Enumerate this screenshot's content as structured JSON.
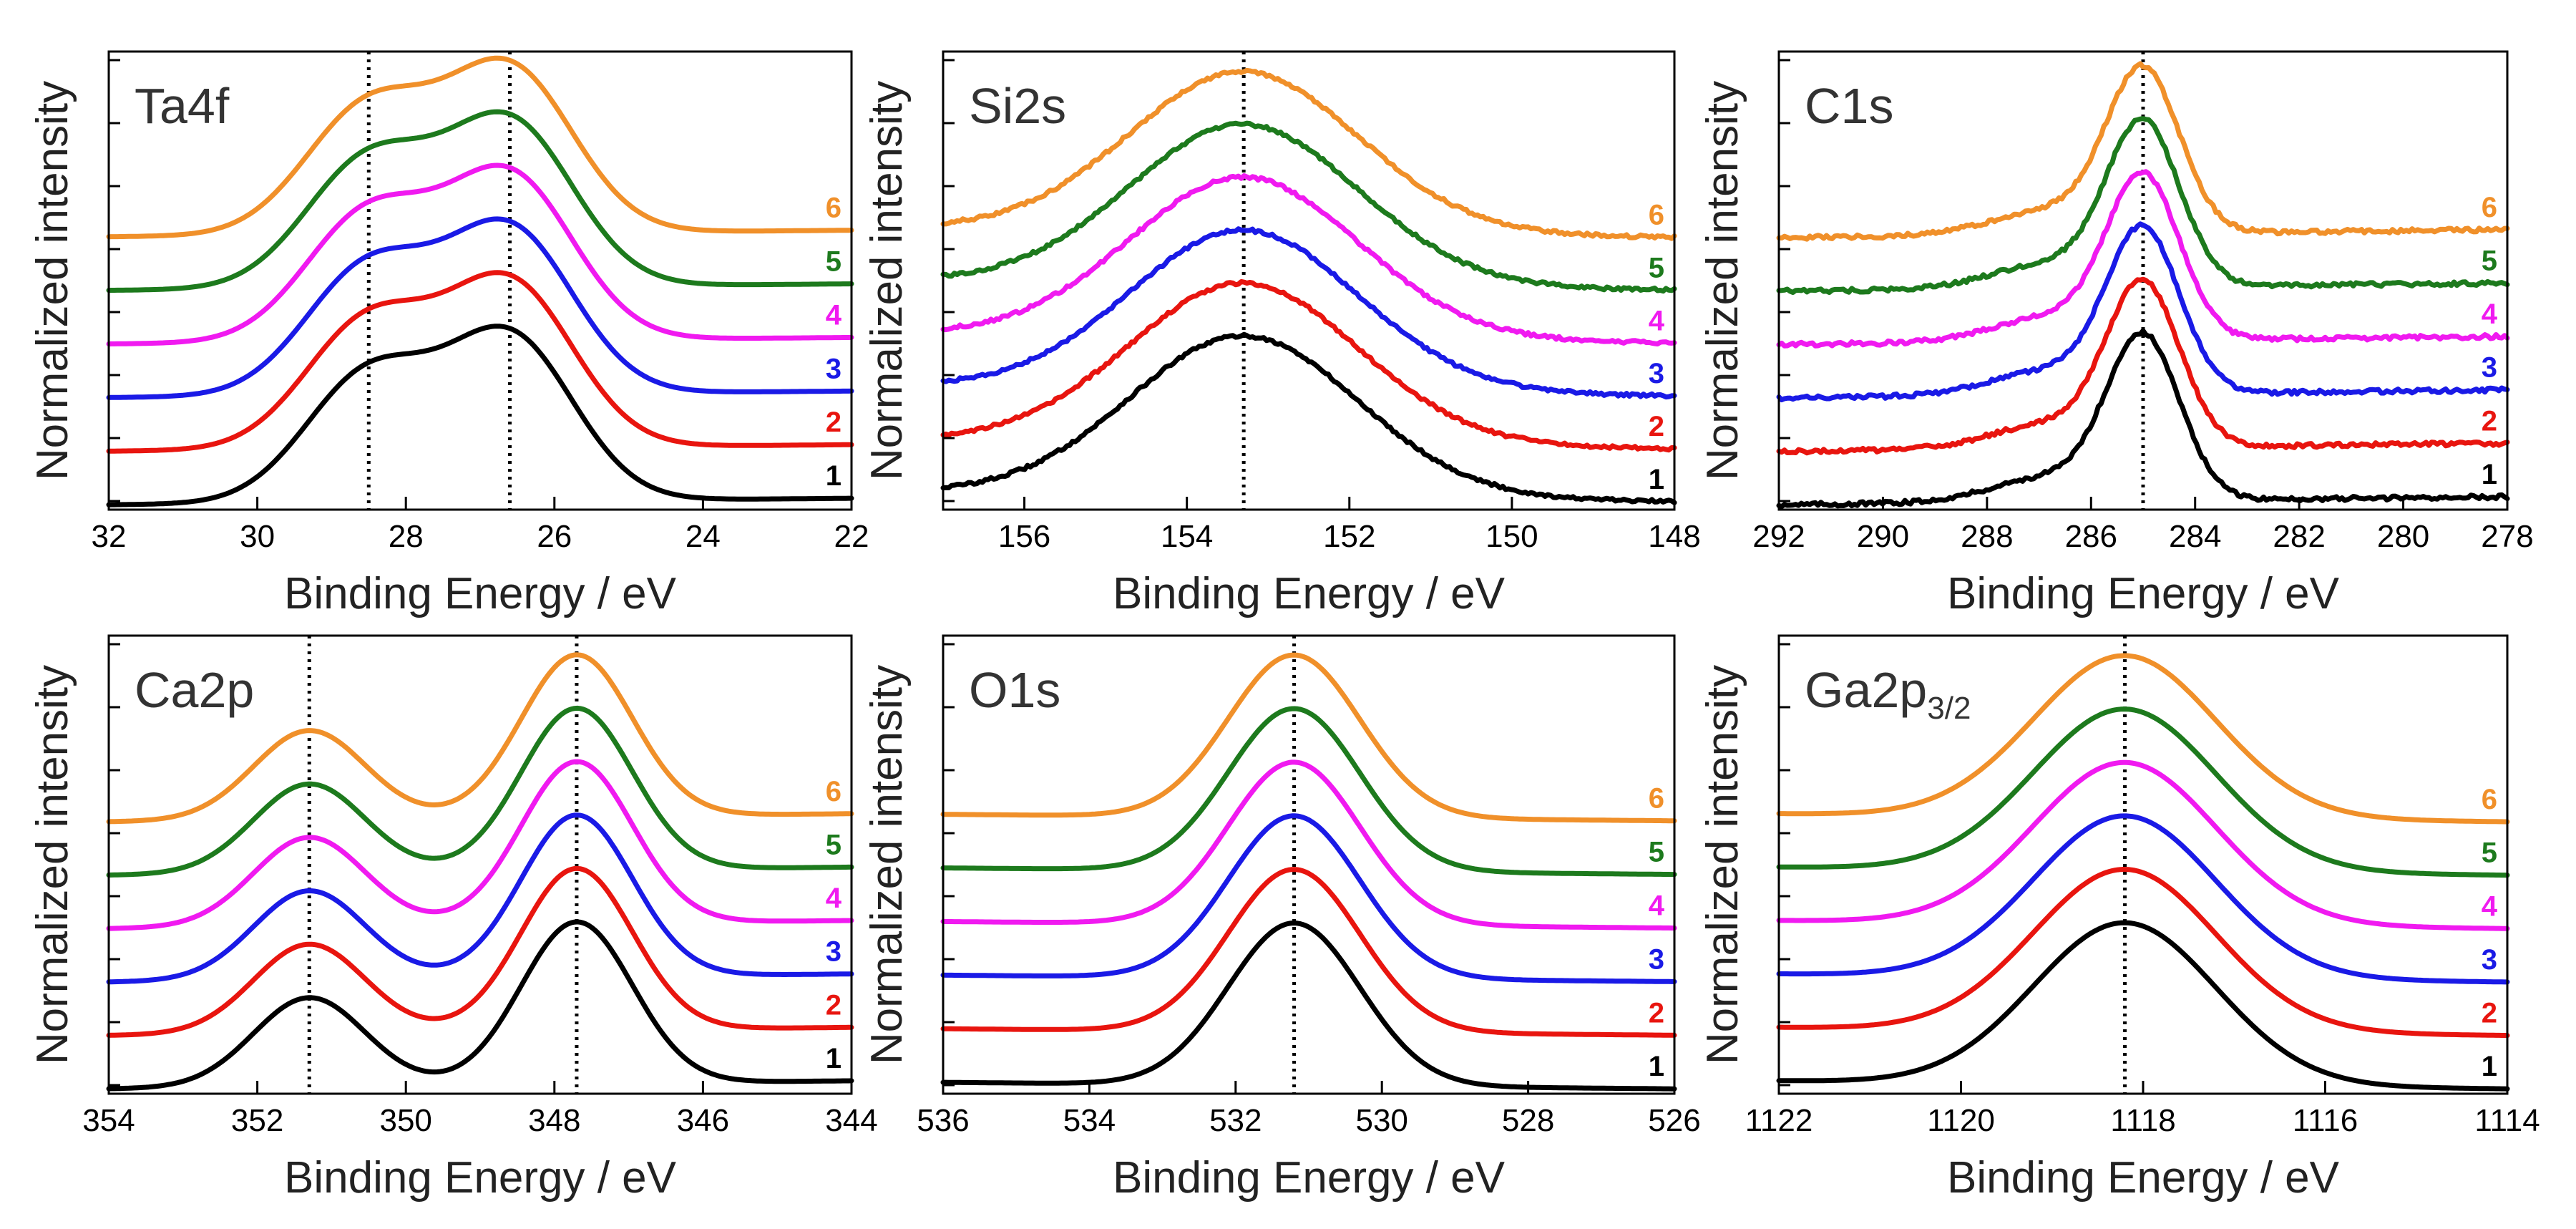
{
  "figure": {
    "series_names": [
      "1",
      "2",
      "3",
      "4",
      "5",
      "6"
    ],
    "series_colors": [
      "#000000",
      "#e8150f",
      "#1a1ae6",
      "#f01af0",
      "#1d7a1d",
      "#f0902a"
    ],
    "xlabel": "Binding Energy / eV",
    "ylabel": "Normalized intensity"
  },
  "chart_data": [
    {
      "type": "line",
      "title": "Ta4f",
      "xlabel": "Binding Energy / eV",
      "ylabel": "Normalized intensity",
      "xlim": [
        32,
        22
      ],
      "xticks": [
        "32",
        "30",
        "28",
        "26",
        "24",
        "22"
      ],
      "xtick_values": [
        32,
        30,
        28,
        26,
        24,
        22
      ],
      "dotted_lines_at": [
        28.5,
        26.6
      ],
      "peaks": [
        {
          "center": 28.5,
          "width": 0.85,
          "height": 0.78
        },
        {
          "center": 26.6,
          "width": 0.85,
          "height": 1.0
        }
      ],
      "baseline_left": 0.0,
      "baseline_right": 0.04,
      "series_offset": 0.33,
      "noise": 0.0,
      "series": [
        {
          "name": "1",
          "color": "#000000"
        },
        {
          "name": "2",
          "color": "#e8150f"
        },
        {
          "name": "3",
          "color": "#1a1ae6"
        },
        {
          "name": "4",
          "color": "#f01af0"
        },
        {
          "name": "5",
          "color": "#1d7a1d"
        },
        {
          "name": "6",
          "color": "#f0902a"
        }
      ]
    },
    {
      "type": "line",
      "title": "Si2s",
      "xlabel": "Binding Energy / eV",
      "ylabel": "Normalized intensity",
      "xlim": [
        157,
        148
      ],
      "xticks": [
        "156",
        "154",
        "152",
        "150",
        "148"
      ],
      "xtick_values": [
        156,
        154,
        152,
        150,
        148
      ],
      "dotted_lines_at": [
        153.3
      ],
      "peaks": [
        {
          "center": 153.3,
          "width": 1.4,
          "height": 1.0
        }
      ],
      "baseline_left": 0.08,
      "baseline_right": 0.02,
      "series_offset": 0.33,
      "noise": 0.02,
      "series": [
        {
          "name": "1",
          "color": "#000000"
        },
        {
          "name": "2",
          "color": "#e8150f"
        },
        {
          "name": "3",
          "color": "#1a1ae6"
        },
        {
          "name": "4",
          "color": "#f01af0"
        },
        {
          "name": "5",
          "color": "#1d7a1d"
        },
        {
          "name": "6",
          "color": "#f0902a"
        }
      ]
    },
    {
      "type": "line",
      "title": "C1s",
      "xlabel": "Binding Energy / eV",
      "ylabel": "Normalized intensity",
      "xlim": [
        292,
        278
      ],
      "xticks": [
        "292",
        "290",
        "288",
        "286",
        "284",
        "282",
        "280",
        "278"
      ],
      "xtick_values": [
        292,
        290,
        288,
        286,
        284,
        282,
        280,
        278
      ],
      "dotted_lines_at": [
        285.0
      ],
      "peaks": [
        {
          "center": 285.0,
          "width": 0.7,
          "height": 1.0
        },
        {
          "center": 286.8,
          "width": 1.1,
          "height": 0.15
        }
      ],
      "baseline_left": 0.0,
      "baseline_right": 0.05,
      "series_offset": 0.33,
      "noise": 0.025,
      "series": [
        {
          "name": "1",
          "color": "#000000"
        },
        {
          "name": "2",
          "color": "#e8150f"
        },
        {
          "name": "3",
          "color": "#1a1ae6"
        },
        {
          "name": "4",
          "color": "#f01af0"
        },
        {
          "name": "5",
          "color": "#1d7a1d"
        },
        {
          "name": "6",
          "color": "#f0902a"
        }
      ]
    },
    {
      "type": "line",
      "title": "Ca2p",
      "xlabel": "Binding Energy / eV",
      "ylabel": "Normalized intensity",
      "xlim": [
        354,
        344
      ],
      "xticks": [
        "354",
        "352",
        "350",
        "348",
        "346",
        "344"
      ],
      "xtick_values": [
        354,
        352,
        350,
        348,
        346,
        344
      ],
      "dotted_lines_at": [
        351.3,
        347.7
      ],
      "peaks": [
        {
          "center": 351.3,
          "width": 0.75,
          "height": 0.55
        },
        {
          "center": 347.7,
          "width": 0.75,
          "height": 1.0
        }
      ],
      "baseline_left": 0.0,
      "baseline_right": 0.05,
      "series_offset": 0.33,
      "noise": 0.0,
      "series": [
        {
          "name": "1",
          "color": "#000000"
        },
        {
          "name": "2",
          "color": "#e8150f"
        },
        {
          "name": "3",
          "color": "#1a1ae6"
        },
        {
          "name": "4",
          "color": "#f01af0"
        },
        {
          "name": "5",
          "color": "#1d7a1d"
        },
        {
          "name": "6",
          "color": "#f0902a"
        }
      ]
    },
    {
      "type": "line",
      "title": "O1s",
      "xlabel": "Binding Energy / eV",
      "ylabel": "Normalized intensity",
      "xlim": [
        536,
        526
      ],
      "xticks": [
        "536",
        "534",
        "532",
        "530",
        "528",
        "526"
      ],
      "xtick_values": [
        536,
        534,
        532,
        530,
        528,
        526
      ],
      "dotted_lines_at": [
        531.2
      ],
      "peaks": [
        {
          "center": 531.2,
          "width": 0.9,
          "height": 1.0
        }
      ],
      "baseline_left": 0.04,
      "baseline_right": 0.0,
      "series_offset": 0.33,
      "noise": 0.0,
      "series": [
        {
          "name": "1",
          "color": "#000000"
        },
        {
          "name": "2",
          "color": "#e8150f"
        },
        {
          "name": "3",
          "color": "#1a1ae6"
        },
        {
          "name": "4",
          "color": "#f01af0"
        },
        {
          "name": "5",
          "color": "#1d7a1d"
        },
        {
          "name": "6",
          "color": "#f0902a"
        }
      ]
    },
    {
      "type": "line",
      "title": "Ga2p",
      "title_sub": "3/2",
      "xlabel": "Binding Energy / eV",
      "ylabel": "Normalized intensity",
      "xlim": [
        1122,
        1114
      ],
      "xticks": [
        "1122",
        "1120",
        "1118",
        "1116",
        "1114"
      ],
      "xtick_values": [
        1122,
        1120,
        1118,
        1116,
        1114
      ],
      "dotted_lines_at": [
        1118.2
      ],
      "peaks": [
        {
          "center": 1118.2,
          "width": 1.0,
          "height": 1.0
        }
      ],
      "baseline_left": 0.05,
      "baseline_right": 0.0,
      "series_offset": 0.33,
      "noise": 0.0,
      "series": [
        {
          "name": "1",
          "color": "#000000"
        },
        {
          "name": "2",
          "color": "#e8150f"
        },
        {
          "name": "3",
          "color": "#1a1ae6"
        },
        {
          "name": "4",
          "color": "#f01af0"
        },
        {
          "name": "5",
          "color": "#1d7a1d"
        },
        {
          "name": "6",
          "color": "#f0902a"
        }
      ]
    }
  ]
}
